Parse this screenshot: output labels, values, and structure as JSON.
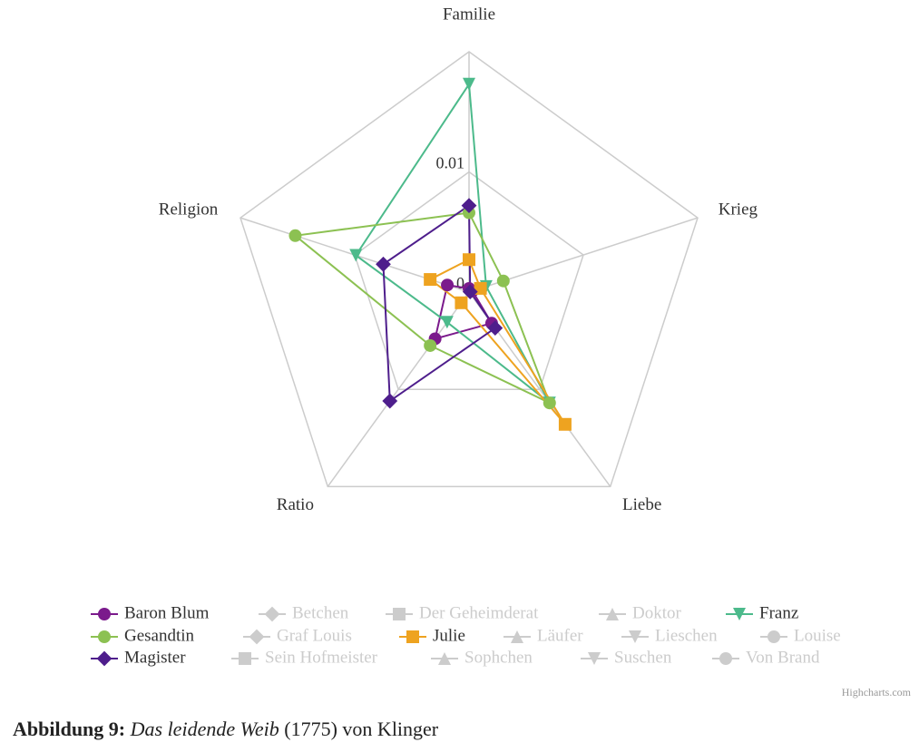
{
  "chart_data": {
    "type": "radar",
    "categories": [
      "Familie",
      "Krieg",
      "Liebe",
      "Ratio",
      "Religion"
    ],
    "ylim": [
      0,
      0.02
    ],
    "yticks": [
      0,
      0.01
    ],
    "series": [
      {
        "name": "Baron Blum",
        "color": "#7b1a8c",
        "symbol": "circle",
        "visible": true,
        "values": [
          0.0003,
          0.0003,
          0.0032,
          0.0048,
          0.0019
        ]
      },
      {
        "name": "Betchen",
        "color": "#cccccc",
        "symbol": "diamond",
        "visible": false
      },
      {
        "name": "Der Geheimderat",
        "color": "#cccccc",
        "symbol": "square",
        "visible": false
      },
      {
        "name": "Doktor",
        "color": "#cccccc",
        "symbol": "triangle",
        "visible": false
      },
      {
        "name": "Franz",
        "color": "#4cba8b",
        "symbol": "triangle-down",
        "visible": true,
        "values": [
          0.0173,
          0.0015,
          0.0114,
          0.0031,
          0.0099
        ]
      },
      {
        "name": "Gesandtin",
        "color": "#8cc152",
        "symbol": "circle",
        "visible": true,
        "values": [
          0.0066,
          0.003,
          0.0114,
          0.0055,
          0.0152
        ]
      },
      {
        "name": "Graf Louis",
        "color": "#cccccc",
        "symbol": "diamond",
        "visible": false
      },
      {
        "name": "Julie",
        "color": "#eea320",
        "symbol": "square",
        "visible": true,
        "values": [
          0.0027,
          0.001,
          0.0136,
          0.0011,
          0.0034
        ]
      },
      {
        "name": "Läufer",
        "color": "#cccccc",
        "symbol": "triangle",
        "visible": false
      },
      {
        "name": "Lieschen",
        "color": "#cccccc",
        "symbol": "triangle-down",
        "visible": false
      },
      {
        "name": "Louise",
        "color": "#cccccc",
        "symbol": "circle",
        "visible": false
      },
      {
        "name": "Magister",
        "color": "#4e1e8c",
        "symbol": "diamond",
        "visible": true,
        "values": [
          0.0072,
          0.0001,
          0.0037,
          0.0112,
          0.0075
        ]
      },
      {
        "name": "Sein Hofmeister",
        "color": "#cccccc",
        "symbol": "square",
        "visible": false
      },
      {
        "name": "Sophchen",
        "color": "#cccccc",
        "symbol": "triangle",
        "visible": false
      },
      {
        "name": "Suschen",
        "color": "#cccccc",
        "symbol": "triangle-down",
        "visible": false
      },
      {
        "name": "Von Brand",
        "color": "#cccccc",
        "symbol": "circle",
        "visible": false
      }
    ],
    "credits": "Highcharts.com"
  },
  "caption": {
    "label": "Abbildung 9:",
    "title": "Das leidende Weib",
    "rest": "(1775) von Klinger"
  }
}
